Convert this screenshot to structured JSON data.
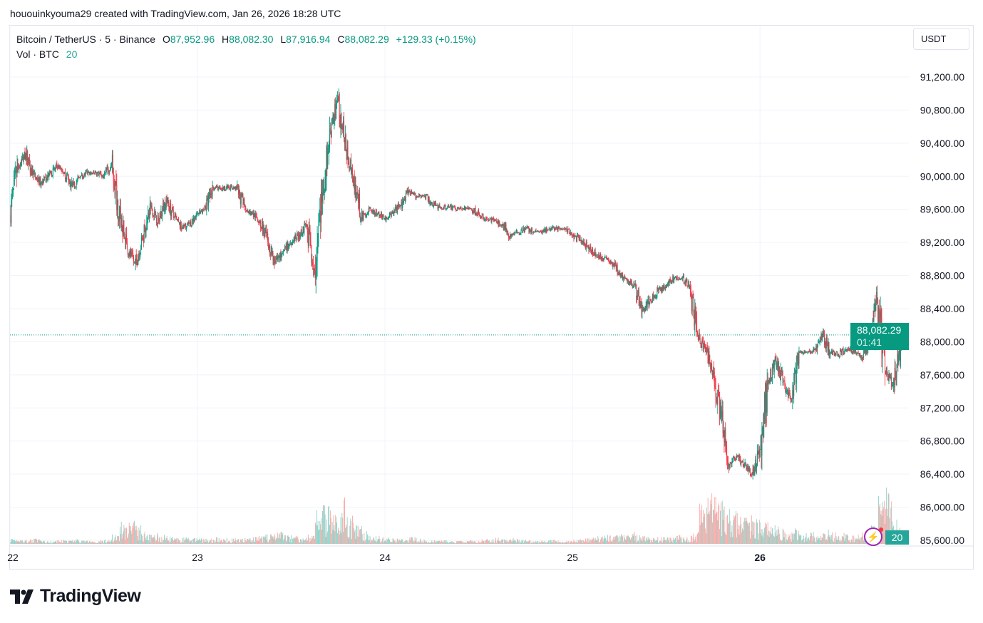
{
  "credit": "hououinkyouma29 created with TradingView.com, Jan 26, 2026 18:28 UTC",
  "legend": {
    "symbol": "Bitcoin / TetherUS · 5 · Binance",
    "o_label": "O",
    "open": "87,952.96",
    "h_label": "H",
    "high": "88,082.30",
    "l_label": "L",
    "low": "87,916.94",
    "c_label": "C",
    "close": "88,082.29",
    "change": "+129.33 (+0.15%)",
    "vol_label": "Vol · BTC",
    "vol_value": "20"
  },
  "currency_button": "USDT",
  "price_tag": {
    "price": "88,082.29",
    "countdown": "01:41"
  },
  "volume_tag": "20",
  "logo": "TradingView",
  "colors": {
    "up": "#089981",
    "down": "#f23645",
    "vol_up": "#8fd3c9",
    "vol_down": "#f7a9a7",
    "grid": "#f0f3fa"
  },
  "chart_data": {
    "type": "candlestick",
    "interval": "5",
    "y_ticks": [
      "91,200.00",
      "90,800.00",
      "90,400.00",
      "90,000.00",
      "89,600.00",
      "89,200.00",
      "88,800.00",
      "88,400.00",
      "88,000.00",
      "87,600.00",
      "87,200.00",
      "86,800.00",
      "86,400.00",
      "86,000.00",
      "85,600.00"
    ],
    "y_tick_values": [
      91200,
      90800,
      90400,
      90000,
      89600,
      89200,
      88800,
      88400,
      88000,
      87600,
      87200,
      86800,
      86400,
      86000,
      85600
    ],
    "ylim": [
      85600,
      91200
    ],
    "x_ticks": [
      {
        "label": "22",
        "day": 22
      },
      {
        "label": "23",
        "day": 23
      },
      {
        "label": "24",
        "day": 24
      },
      {
        "label": "25",
        "day": 25
      },
      {
        "label": "26",
        "day": 26
      }
    ],
    "start": "2026-01-22 00:00",
    "end": "2026-01-26 18:28",
    "last_price": 88082.29,
    "hourly_closes": [
      89550,
      90110,
      90280,
      90020,
      89910,
      90010,
      90110,
      90050,
      89870,
      89990,
      90040,
      90040,
      90000,
      90150,
      89550,
      89120,
      88940,
      89240,
      89630,
      89460,
      89720,
      89500,
      89370,
      89420,
      89550,
      89610,
      89870,
      89850,
      89870,
      89850,
      89630,
      89550,
      89460,
      89200,
      88960,
      89100,
      89200,
      89290,
      89420,
      88860,
      89800,
      90540,
      90920,
      90320,
      89980,
      89500,
      89610,
      89550,
      89500,
      89550,
      89650,
      89800,
      89760,
      89760,
      89680,
      89620,
      89630,
      89610,
      89610,
      89610,
      89540,
      89490,
      89460,
      89420,
      89290,
      89320,
      89370,
      89330,
      89330,
      89370,
      89370,
      89360,
      89290,
      89220,
      89140,
      89050,
      89010,
      88960,
      88830,
      88730,
      88670,
      88370,
      88510,
      88620,
      88670,
      88770,
      88770,
      88670,
      88080,
      87910,
      87650,
      87090,
      86490,
      86620,
      86510,
      86400,
      86700,
      87480,
      87780,
      87520,
      87310,
      87870,
      87870,
      87910,
      88080,
      87870,
      87850,
      87910,
      87880,
      87820,
      88000,
      88510,
      87650,
      87480,
      87910,
      88082.29
    ],
    "hourly_peak_volume_btc": [
      20,
      15,
      14,
      18,
      12,
      10,
      14,
      12,
      16,
      12,
      10,
      12,
      14,
      30,
      70,
      90,
      60,
      40,
      35,
      30,
      25,
      20,
      22,
      18,
      20,
      18,
      22,
      20,
      18,
      16,
      22,
      25,
      30,
      35,
      40,
      30,
      25,
      22,
      30,
      110,
      130,
      100,
      150,
      90,
      60,
      40,
      30,
      25,
      20,
      18,
      16,
      22,
      18,
      14,
      12,
      12,
      10,
      10,
      12,
      10,
      14,
      16,
      20,
      15,
      18,
      14,
      12,
      10,
      12,
      14,
      10,
      10,
      16,
      18,
      22,
      25,
      30,
      28,
      35,
      40,
      30,
      25,
      28,
      22,
      20,
      30,
      25,
      40,
      130,
      160,
      150,
      140,
      110,
      100,
      90,
      80,
      70,
      60,
      55,
      45,
      50,
      40,
      38,
      35,
      45,
      40,
      35,
      30,
      35,
      40,
      60,
      150,
      180,
      90,
      40
    ]
  }
}
